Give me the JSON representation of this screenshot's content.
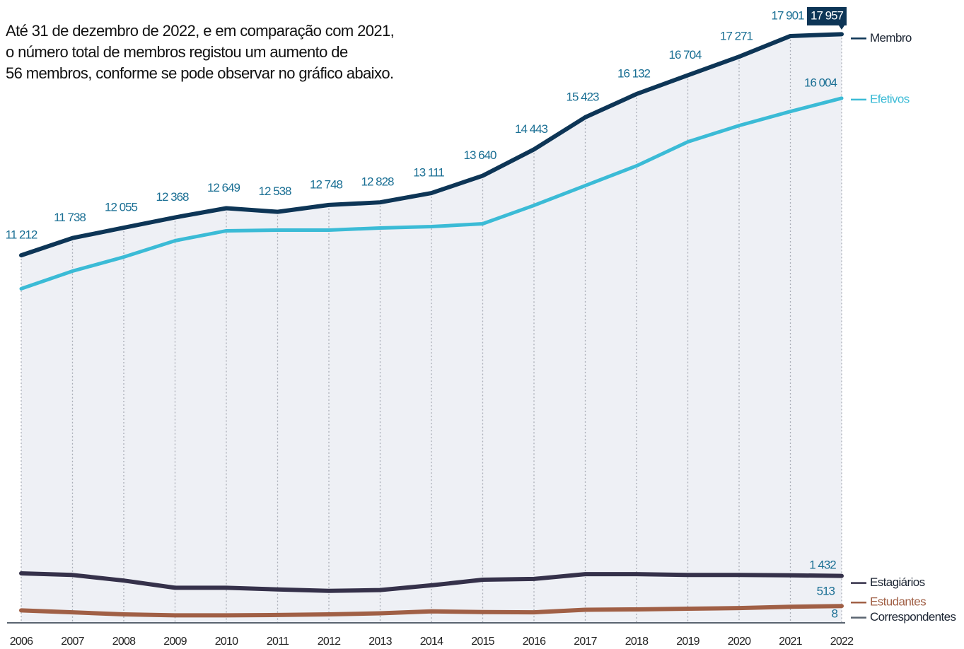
{
  "chart_data": {
    "type": "line",
    "annotation": [
      "Até 31 de dezembro de 2022, e em comparação com 2021,",
      "o número total de membros registou um aumento de",
      "56 membros, conforme se pode observar no gráfico abaixo."
    ],
    "categories": [
      "2006",
      "2007",
      "2008",
      "2009",
      "2010",
      "2011",
      "2012",
      "2013",
      "2014",
      "2015",
      "2016",
      "2017",
      "2018",
      "2019",
      "2020",
      "2021",
      "2022"
    ],
    "ylim": [
      0,
      19000
    ],
    "series": [
      {
        "name": "Membro",
        "color": "#0d3556",
        "values": [
          11212,
          11738,
          12055,
          12368,
          12649,
          12538,
          12748,
          12828,
          13111,
          13640,
          14443,
          15423,
          16132,
          16704,
          17271,
          17901,
          17957
        ],
        "value_labels": [
          "11 212",
          "11 738",
          "12 055",
          "12 368",
          "12 649",
          "12 538",
          "12 748",
          "12 828",
          "13 111",
          "13 640",
          "14 443",
          "15 423",
          "16 132",
          "16 704",
          "17 271",
          "17 901",
          "17 957"
        ]
      },
      {
        "name": "Efetivos",
        "color": "#3bbbd6",
        "values": [
          10192,
          10730,
          11160,
          11657,
          11959,
          11980,
          11980,
          12045,
          12088,
          12174,
          12734,
          13338,
          13941,
          14674,
          15169,
          15600,
          16004
        ],
        "value_labels": [
          null,
          null,
          null,
          null,
          null,
          null,
          null,
          null,
          null,
          null,
          null,
          null,
          null,
          null,
          null,
          null,
          "16 004"
        ]
      },
      {
        "name": "Estagiários",
        "color": "#35314a",
        "values": [
          1510,
          1460,
          1290,
          1070,
          1070,
          1020,
          975,
          1000,
          1145,
          1315,
          1340,
          1485,
          1485,
          1460,
          1460,
          1450,
          1432
        ],
        "value_labels": [
          null,
          null,
          null,
          null,
          null,
          null,
          null,
          null,
          null,
          null,
          null,
          null,
          null,
          null,
          null,
          null,
          "1 432"
        ]
      },
      {
        "name": "Estudantes",
        "color": "#a05f45",
        "values": [
          380,
          320,
          260,
          230,
          230,
          240,
          260,
          290,
          350,
          330,
          320,
          400,
          410,
          430,
          450,
          490,
          513
        ],
        "value_labels": [
          null,
          null,
          null,
          null,
          null,
          null,
          null,
          null,
          null,
          null,
          null,
          null,
          null,
          null,
          null,
          null,
          null
        ]
      },
      {
        "name": "Correspondentes",
        "color": "#5a6470",
        "values": [
          8,
          8,
          8,
          8,
          8,
          8,
          8,
          8,
          8,
          8,
          8,
          8,
          8,
          8,
          8,
          8,
          8
        ],
        "value_labels": [
          null,
          null,
          null,
          null,
          null,
          null,
          null,
          null,
          null,
          null,
          null,
          null,
          null,
          null,
          null,
          null,
          null
        ]
      }
    ]
  }
}
